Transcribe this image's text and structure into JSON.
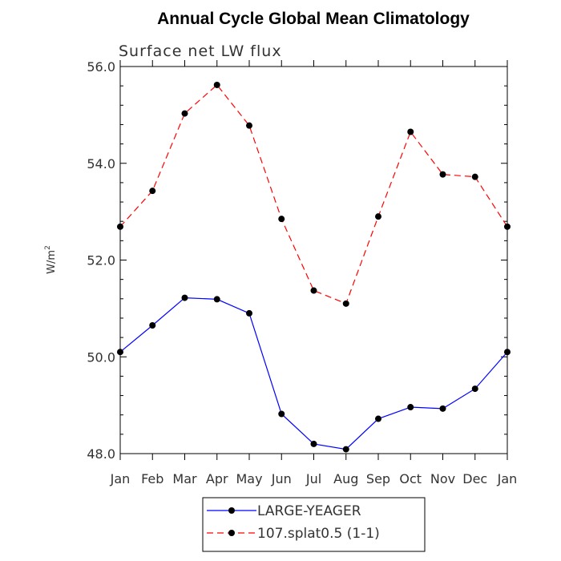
{
  "chart_data": {
    "type": "line",
    "title": "Annual Cycle Global Mean Climatology",
    "subtitle": "Surface net LW flux",
    "xlabel": "",
    "ylabel": "W/m",
    "ylabel_superscript": "2",
    "categories": [
      "Jan",
      "Feb",
      "Mar",
      "Apr",
      "May",
      "Jun",
      "Jul",
      "Aug",
      "Sep",
      "Oct",
      "Nov",
      "Dec",
      "Jan"
    ],
    "ylim": [
      48.0,
      56.0
    ],
    "yticks": [
      "48.0",
      "50.0",
      "52.0",
      "54.0",
      "56.0"
    ],
    "grid": false,
    "legend_position": "bottom",
    "series": [
      {
        "name": "LARGE-YEAGER",
        "color": "#0000ff",
        "dash": "solid",
        "marker": "circle",
        "values": [
          50.1,
          50.65,
          51.22,
          51.19,
          50.9,
          48.82,
          48.2,
          48.09,
          48.72,
          48.96,
          48.93,
          49.34,
          50.1
        ]
      },
      {
        "name": "107.splat0.5 (1-1)",
        "color": "#ff0000",
        "dash": "dashed",
        "marker": "circle",
        "values": [
          52.69,
          53.43,
          55.03,
          55.62,
          54.78,
          52.85,
          51.37,
          51.1,
          52.9,
          54.65,
          53.77,
          53.72,
          52.69
        ]
      }
    ]
  }
}
